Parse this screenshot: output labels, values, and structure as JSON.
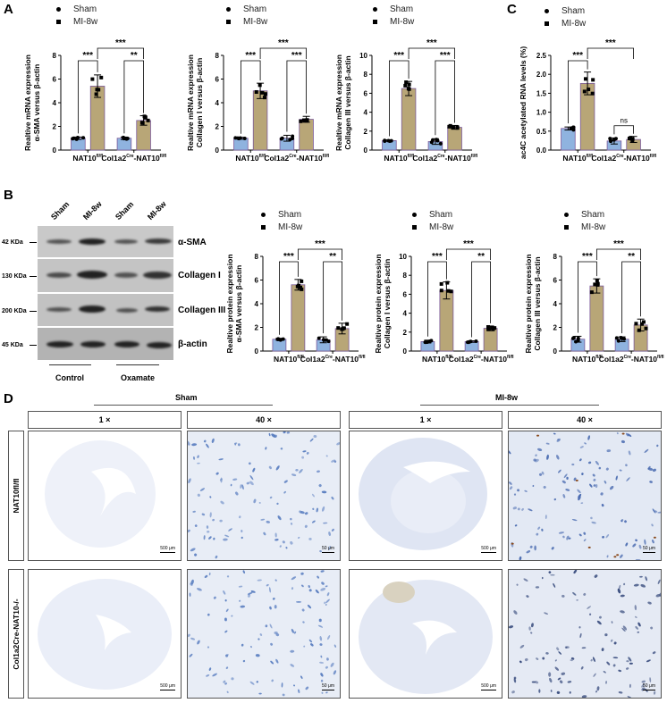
{
  "panels": {
    "A": "A",
    "B": "B",
    "C": "C",
    "D": "D"
  },
  "legend": {
    "sham": "Sham",
    "mi": "MI-8w"
  },
  "colors": {
    "sham_bar": "#8fb3df",
    "mi_bar": "#b8a677",
    "bar_edge": "#7b5a9a"
  },
  "chart_data": [
    {
      "id": "A1",
      "type": "bar",
      "ylabel_line1": "Realtive mRNA expression",
      "ylabel_line2": "α-SMA versus β-actin",
      "categories": [
        "NAT10fl/fl",
        "Col1a2Cre-NAT10fl/fl"
      ],
      "series": [
        {
          "name": "Sham",
          "values": [
            1.0,
            1.0
          ]
        },
        {
          "name": "MI-8w",
          "values": [
            5.4,
            2.5
          ]
        }
      ],
      "errors": [
        [
          0.1,
          0.1
        ],
        [
          0.95,
          0.4
        ]
      ],
      "ylim": [
        0,
        8
      ],
      "yticks": [
        0,
        2,
        4,
        6,
        8
      ],
      "significance": {
        "within": [
          "***",
          "**"
        ],
        "between": "***"
      }
    },
    {
      "id": "A2",
      "type": "bar",
      "ylabel_line1": "Realtive mRNA expression",
      "ylabel_line2": "Collagen I versus β-actin",
      "categories": [
        "NAT10fl/fl",
        "Col1a2Cre-NAT10fl/fl"
      ],
      "series": [
        {
          "name": "Sham",
          "values": [
            1.0,
            1.0
          ]
        },
        {
          "name": "MI-8w",
          "values": [
            5.0,
            2.6
          ]
        }
      ],
      "errors": [
        [
          0.08,
          0.25
        ],
        [
          0.65,
          0.25
        ]
      ],
      "ylim": [
        0,
        8
      ],
      "yticks": [
        0,
        2,
        4,
        6,
        8
      ],
      "significance": {
        "within": [
          "***",
          "***"
        ],
        "between": "***"
      }
    },
    {
      "id": "A3",
      "type": "bar",
      "ylabel_line1": "Realtive mRNA expression",
      "ylabel_line2": "Collagen III versus β-actin",
      "categories": [
        "NAT10fl/fl",
        "Col1a2Cre-NAT10fl/fl"
      ],
      "series": [
        {
          "name": "Sham",
          "values": [
            1.0,
            0.9
          ]
        },
        {
          "name": "MI-8w",
          "values": [
            6.5,
            2.4
          ]
        }
      ],
      "errors": [
        [
          0.08,
          0.3
        ],
        [
          0.75,
          0.2
        ]
      ],
      "ylim": [
        0,
        10
      ],
      "yticks": [
        0,
        2,
        4,
        6,
        8,
        10
      ],
      "significance": {
        "within": [
          "***",
          "***"
        ],
        "between": "***"
      }
    },
    {
      "id": "C",
      "type": "bar",
      "ylabel_line1": "ac4C acetylated RNA levels (%)",
      "ylabel_line2": "",
      "categories": [
        "NAT10fl/fl",
        "Col1a2Cre-NAT10fl/fl"
      ],
      "series": [
        {
          "name": "Sham",
          "values": [
            0.57,
            0.24
          ]
        },
        {
          "name": "MI-8w",
          "values": [
            1.76,
            0.28
          ]
        }
      ],
      "errors": [
        [
          0.04,
          0.08
        ],
        [
          0.3,
          0.08
        ]
      ],
      "ylim": [
        0,
        2.5
      ],
      "yticks": [
        0.0,
        0.5,
        1.0,
        1.5,
        2.0,
        2.5
      ],
      "significance": {
        "within": [
          "***",
          "ns"
        ],
        "between": "***"
      }
    },
    {
      "id": "B1",
      "type": "bar",
      "ylabel_line1": "Realtive protein expression",
      "ylabel_line2": "α-SMA versus β-actin",
      "categories": [
        "NAT10fl/fl",
        "Col1a2Cre-NAT10fl/fl"
      ],
      "series": [
        {
          "name": "Sham",
          "values": [
            1.0,
            0.95
          ]
        },
        {
          "name": "MI-8w",
          "values": [
            5.6,
            1.9
          ]
        }
      ],
      "errors": [
        [
          0.08,
          0.25
        ],
        [
          0.45,
          0.45
        ]
      ],
      "ylim": [
        0,
        8
      ],
      "yticks": [
        0,
        2,
        4,
        6,
        8
      ],
      "significance": {
        "within": [
          "***",
          "**"
        ],
        "between": "***"
      }
    },
    {
      "id": "B2",
      "type": "bar",
      "ylabel_line1": "Realtive protein expression",
      "ylabel_line2": "Collagen I versus β-actin",
      "categories": [
        "NAT10fl/fl",
        "Col1a2Cre-NAT10fl/fl"
      ],
      "series": [
        {
          "name": "Sham",
          "values": [
            1.0,
            1.0
          ]
        },
        {
          "name": "MI-8w",
          "values": [
            6.4,
            2.4
          ]
        }
      ],
      "errors": [
        [
          0.15,
          0.08
        ],
        [
          0.9,
          0.25
        ]
      ],
      "ylim": [
        0,
        10
      ],
      "yticks": [
        0,
        2,
        4,
        6,
        8,
        10
      ],
      "significance": {
        "within": [
          "***",
          "**"
        ],
        "between": "***"
      }
    },
    {
      "id": "B3",
      "type": "bar",
      "ylabel_line1": "Realtive protein expression",
      "ylabel_line2": "Collagen III versus β-actin",
      "categories": [
        "NAT10fl/fl",
        "Col1a2Cre-NAT10fl/fl"
      ],
      "series": [
        {
          "name": "Sham",
          "values": [
            1.0,
            1.0
          ]
        },
        {
          "name": "MI-8w",
          "values": [
            5.5,
            2.2
          ]
        }
      ],
      "errors": [
        [
          0.25,
          0.2
        ],
        [
          0.6,
          0.5
        ]
      ],
      "ylim": [
        0,
        8
      ],
      "yticks": [
        0,
        2,
        4,
        6,
        8
      ],
      "significance": {
        "within": [
          "***",
          "**"
        ],
        "between": "***"
      }
    }
  ],
  "western": {
    "lanes": [
      "Sham",
      "MI-8w",
      "Sham",
      "MI-8w"
    ],
    "rows": [
      {
        "kda": "42 KDa",
        "label": "α-SMA"
      },
      {
        "kda": "130 KDa",
        "label": "Collagen I"
      },
      {
        "kda": "200 KDa",
        "label": "Collagen III"
      },
      {
        "kda": "45 KDa",
        "label": "β-actin"
      }
    ],
    "groups": [
      "Control",
      "Oxamate"
    ]
  },
  "histology": {
    "col_groups": [
      "Sham",
      "MI-8w"
    ],
    "magnifications": [
      "1 ×",
      "40 ×",
      "1 ×",
      "40 ×"
    ],
    "rows": [
      "NAT10fl/fl",
      "Col1a2Cre-NAT10-/-"
    ],
    "scale_1x": "500 μm",
    "scale_40x": "50 μm"
  }
}
